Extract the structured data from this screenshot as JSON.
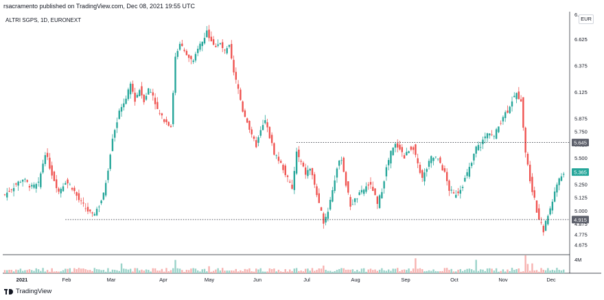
{
  "header": {
    "published": "rsacramento published on TradingView.com, Dec 08, 2021 19:55 UTC",
    "symbol": "ALTRI SGPS, 1D, EURONEXT",
    "currency": "EUR"
  },
  "footer": {
    "brand": "TradingView"
  },
  "colors": {
    "up": "#26a69a",
    "down": "#ef5350",
    "up_volume": "#9ad3c9",
    "down_volume": "#f7b2b0",
    "level_line": "#131722",
    "current_price_tag": "#26a69a",
    "level_tag": "#5d606b"
  },
  "chart_data": {
    "type": "candlestick",
    "title": "ALTRI SGPS, 1D, EURONEXT",
    "currency": "EUR",
    "y_ticks": [
      "4.675",
      "4.775",
      "4.875",
      "5.000",
      "5.125",
      "5.250",
      "5.375",
      "5.500",
      "5.625",
      "5.750",
      "5.875",
      "6.125",
      "6.375",
      "6.625"
    ],
    "ylim": [
      4.6,
      6.75
    ],
    "x_ticks": [
      "2021",
      "Feb",
      "Mar",
      "Apr",
      "May",
      "Jun",
      "Jul",
      "Aug",
      "Sep",
      "Oct",
      "Nov",
      "Dec"
    ],
    "volume_axis_label": "4M",
    "horizontal_levels": [
      5.645,
      4.915
    ],
    "last_price": 5.365,
    "price_tags": [
      "5.645",
      "5.365",
      "4.915"
    ],
    "close_path": [
      [
        0,
        5.15
      ],
      [
        5,
        5.25
      ],
      [
        8,
        5.3
      ],
      [
        12,
        5.22
      ],
      [
        15,
        5.25
      ],
      [
        18,
        5.55
      ],
      [
        21,
        5.35
      ],
      [
        24,
        5.18
      ],
      [
        27,
        5.28
      ],
      [
        30,
        5.22
      ],
      [
        33,
        5.1
      ],
      [
        36,
        5.02
      ],
      [
        39,
        4.95
      ],
      [
        42,
        5.05
      ],
      [
        44,
        5.15
      ],
      [
        46,
        5.4
      ],
      [
        48,
        5.7
      ],
      [
        50,
        5.85
      ],
      [
        52,
        6.0
      ],
      [
        54,
        6.05
      ],
      [
        56,
        6.2
      ],
      [
        58,
        6.05
      ],
      [
        60,
        6.15
      ],
      [
        62,
        6.05
      ],
      [
        64,
        6.15
      ],
      [
        66,
        6.1
      ],
      [
        68,
        5.95
      ],
      [
        70,
        5.88
      ],
      [
        72,
        5.85
      ],
      [
        74,
        5.8
      ],
      [
        76,
        6.45
      ],
      [
        78,
        6.6
      ],
      [
        80,
        6.5
      ],
      [
        82,
        6.45
      ],
      [
        84,
        6.4
      ],
      [
        86,
        6.55
      ],
      [
        88,
        6.6
      ],
      [
        90,
        6.7
      ],
      [
        92,
        6.62
      ],
      [
        94,
        6.55
      ],
      [
        96,
        6.58
      ],
      [
        98,
        6.5
      ],
      [
        100,
        6.55
      ],
      [
        102,
        6.3
      ],
      [
        104,
        6.15
      ],
      [
        106,
        5.95
      ],
      [
        108,
        5.85
      ],
      [
        110,
        5.7
      ],
      [
        112,
        5.62
      ],
      [
        114,
        5.75
      ],
      [
        116,
        5.85
      ],
      [
        118,
        5.7
      ],
      [
        120,
        5.55
      ],
      [
        122,
        5.48
      ],
      [
        124,
        5.4
      ],
      [
        126,
        5.3
      ],
      [
        128,
        5.2
      ],
      [
        130,
        5.55
      ],
      [
        132,
        5.45
      ],
      [
        134,
        5.35
      ],
      [
        136,
        5.4
      ],
      [
        138,
        5.25
      ],
      [
        140,
        5.05
      ],
      [
        142,
        4.9
      ],
      [
        144,
        5.0
      ],
      [
        146,
        5.2
      ],
      [
        148,
        5.4
      ],
      [
        150,
        5.5
      ],
      [
        152,
        5.25
      ],
      [
        154,
        5.05
      ],
      [
        156,
        5.1
      ],
      [
        158,
        5.15
      ],
      [
        160,
        5.2
      ],
      [
        162,
        5.25
      ],
      [
        164,
        5.2
      ],
      [
        166,
        5.05
      ],
      [
        168,
        5.2
      ],
      [
        170,
        5.4
      ],
      [
        172,
        5.55
      ],
      [
        174,
        5.62
      ],
      [
        176,
        5.6
      ],
      [
        178,
        5.5
      ],
      [
        180,
        5.58
      ],
      [
        182,
        5.6
      ],
      [
        184,
        5.45
      ],
      [
        186,
        5.3
      ],
      [
        188,
        5.4
      ],
      [
        190,
        5.5
      ],
      [
        192,
        5.5
      ],
      [
        194,
        5.45
      ],
      [
        196,
        5.35
      ],
      [
        198,
        5.2
      ],
      [
        200,
        5.15
      ],
      [
        202,
        5.18
      ],
      [
        204,
        5.25
      ],
      [
        206,
        5.35
      ],
      [
        208,
        5.45
      ],
      [
        210,
        5.6
      ],
      [
        212,
        5.62
      ],
      [
        214,
        5.7
      ],
      [
        216,
        5.75
      ],
      [
        218,
        5.7
      ],
      [
        220,
        5.8
      ],
      [
        222,
        5.9
      ],
      [
        224,
        5.95
      ],
      [
        226,
        6.05
      ],
      [
        228,
        6.1
      ],
      [
        230,
        6.05
      ],
      [
        232,
        5.55
      ],
      [
        234,
        5.3
      ],
      [
        236,
        5.1
      ],
      [
        238,
        4.9
      ],
      [
        240,
        4.82
      ],
      [
        242,
        4.95
      ],
      [
        244,
        5.1
      ],
      [
        246,
        5.25
      ],
      [
        248,
        5.33
      ],
      [
        249,
        5.365
      ]
    ]
  }
}
